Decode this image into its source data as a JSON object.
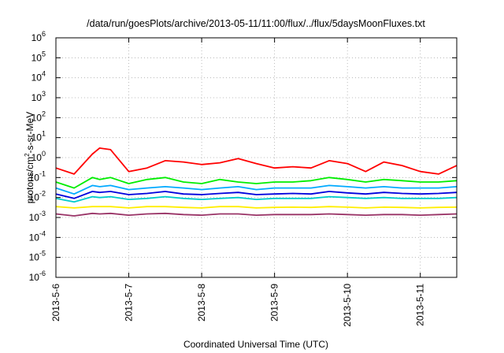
{
  "chart_data": {
    "type": "line",
    "title": "/data/run/goesPlots/archive/2013-05-11/11:00/flux/../flux/5daysMoonFluxes.txt",
    "xlabel": "Coordinated Universal Time (UTC)",
    "ylabel": {
      "prefix": "protons/cm",
      "sup": "2",
      "suffix": "-s-sr-MeV"
    },
    "y_scale": "log",
    "ylim": [
      1e-06,
      1000000.0
    ],
    "y_ticks": [
      {
        "base": "10",
        "exp": "-6",
        "value": 1e-06
      },
      {
        "base": "10",
        "exp": "-5",
        "value": 1e-05
      },
      {
        "base": "10",
        "exp": "-4",
        "value": 0.0001
      },
      {
        "base": "10",
        "exp": "-3",
        "value": 0.001
      },
      {
        "base": "10",
        "exp": "-2",
        "value": 0.01
      },
      {
        "base": "10",
        "exp": "-1",
        "value": 0.1
      },
      {
        "base": "10",
        "exp": "0",
        "value": 1
      },
      {
        "base": "10",
        "exp": "1",
        "value": 10
      },
      {
        "base": "10",
        "exp": "2",
        "value": 100
      },
      {
        "base": "10",
        "exp": "3",
        "value": 1000
      },
      {
        "base": "10",
        "exp": "4",
        "value": 10000
      },
      {
        "base": "10",
        "exp": "5",
        "value": 100000
      },
      {
        "base": "10",
        "exp": "6",
        "value": 1000000
      }
    ],
    "x_ticks": [
      "2013-5-6",
      "2013-5-7",
      "2013-5-8",
      "2013-5-9",
      "2013-5-10",
      "2013-5-11"
    ],
    "xlim": [
      0,
      5.5
    ],
    "grid": true,
    "legend": false,
    "x": [
      0,
      0.25,
      0.5,
      0.6,
      0.75,
      1.0,
      1.25,
      1.5,
      1.75,
      2.0,
      2.25,
      2.5,
      2.75,
      3.0,
      3.25,
      3.5,
      3.75,
      4.0,
      4.25,
      4.5,
      4.75,
      5.0,
      5.25,
      5.5
    ],
    "series": [
      {
        "color": "#ff0000",
        "values": [
          0.3,
          0.15,
          1.5,
          3.0,
          2.5,
          0.2,
          0.3,
          0.7,
          0.6,
          0.45,
          0.55,
          0.9,
          0.5,
          0.3,
          0.35,
          0.3,
          0.7,
          0.5,
          0.2,
          0.6,
          0.4,
          0.2,
          0.15,
          0.4
        ]
      },
      {
        "color": "#00ee00",
        "values": [
          0.06,
          0.03,
          0.1,
          0.08,
          0.1,
          0.05,
          0.08,
          0.1,
          0.06,
          0.05,
          0.08,
          0.06,
          0.05,
          0.06,
          0.06,
          0.07,
          0.1,
          0.08,
          0.06,
          0.08,
          0.07,
          0.06,
          0.06,
          0.07
        ]
      },
      {
        "color": "#00aaff",
        "values": [
          0.03,
          0.015,
          0.04,
          0.035,
          0.04,
          0.025,
          0.03,
          0.035,
          0.03,
          0.025,
          0.03,
          0.035,
          0.025,
          0.03,
          0.03,
          0.03,
          0.04,
          0.035,
          0.03,
          0.035,
          0.03,
          0.03,
          0.03,
          0.035
        ]
      },
      {
        "color": "#0000dd",
        "values": [
          0.015,
          0.009,
          0.02,
          0.018,
          0.02,
          0.014,
          0.016,
          0.02,
          0.015,
          0.014,
          0.016,
          0.018,
          0.014,
          0.015,
          0.016,
          0.015,
          0.02,
          0.017,
          0.015,
          0.018,
          0.016,
          0.015,
          0.016,
          0.018
        ]
      },
      {
        "color": "#00cccc",
        "values": [
          0.009,
          0.006,
          0.011,
          0.01,
          0.011,
          0.008,
          0.009,
          0.011,
          0.009,
          0.008,
          0.009,
          0.01,
          0.008,
          0.009,
          0.009,
          0.009,
          0.011,
          0.01,
          0.009,
          0.01,
          0.009,
          0.009,
          0.009,
          0.01
        ]
      },
      {
        "color": "#ffee00",
        "values": [
          0.0035,
          0.003,
          0.0035,
          0.0035,
          0.0035,
          0.003,
          0.0035,
          0.0035,
          0.0032,
          0.003,
          0.0035,
          0.0035,
          0.003,
          0.0032,
          0.0033,
          0.0032,
          0.0035,
          0.0033,
          0.003,
          0.0033,
          0.0032,
          0.003,
          0.0032,
          0.0033
        ]
      },
      {
        "color": "#993366",
        "values": [
          0.0015,
          0.0012,
          0.0016,
          0.0015,
          0.0016,
          0.0013,
          0.0015,
          0.0016,
          0.0014,
          0.0013,
          0.0015,
          0.0015,
          0.0013,
          0.0014,
          0.0014,
          0.0014,
          0.0015,
          0.0014,
          0.0013,
          0.0014,
          0.0014,
          0.0013,
          0.0014,
          0.0015
        ]
      }
    ]
  }
}
